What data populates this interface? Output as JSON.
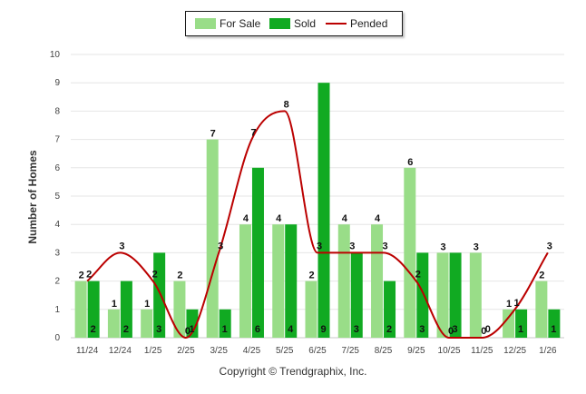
{
  "chart_data": {
    "type": "bar",
    "title": "",
    "xlabel": "",
    "ylabel": "Number of Homes",
    "ylim": [
      0,
      10
    ],
    "yticks": [
      0,
      1,
      2,
      3,
      4,
      5,
      6,
      7,
      8,
      9,
      10
    ],
    "categories": [
      "11/24",
      "12/24",
      "1/25",
      "2/25",
      "3/25",
      "4/25",
      "5/25",
      "6/25",
      "7/25",
      "8/25",
      "9/25",
      "10/25",
      "11/25",
      "12/25",
      "1/26"
    ],
    "series": [
      {
        "name": "For Sale",
        "kind": "bar",
        "color": "#99dd88",
        "values": [
          2,
          1,
          1,
          2,
          7,
          4,
          4,
          2,
          4,
          4,
          6,
          3,
          3,
          1,
          2
        ]
      },
      {
        "name": "Sold",
        "kind": "bar",
        "color": "#11aa22",
        "values": [
          2,
          2,
          3,
          1,
          1,
          6,
          4,
          9,
          3,
          2,
          3,
          3,
          0,
          1,
          1
        ]
      },
      {
        "name": "Pended",
        "kind": "line",
        "color": "#bb0000",
        "values": [
          2,
          3,
          2,
          0,
          3,
          7,
          8,
          3,
          3,
          3,
          2,
          0,
          0,
          1,
          3
        ]
      }
    ],
    "legend": {
      "position": "top-center",
      "entries": [
        "For Sale",
        "Sold",
        "Pended"
      ]
    }
  },
  "footer": {
    "copyright": "Copyright © Trendgraphix, Inc."
  }
}
